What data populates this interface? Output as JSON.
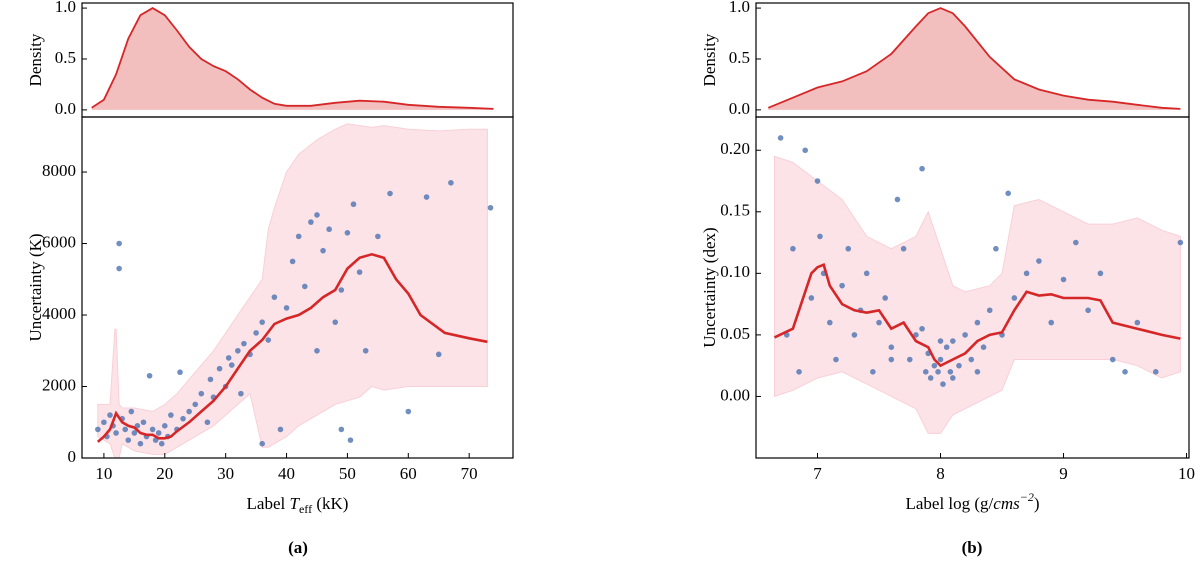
{
  "chart_data": [
    {
      "type": "area",
      "ylabel": "Density",
      "color": "#d62728",
      "x": [
        8,
        10,
        12,
        14,
        16,
        18,
        20,
        22,
        24,
        26,
        28,
        30,
        32,
        34,
        36,
        38,
        40,
        44,
        48,
        52,
        56,
        60,
        65,
        70,
        74
      ],
      "values": [
        0.02,
        0.1,
        0.35,
        0.7,
        0.93,
        1.0,
        0.93,
        0.78,
        0.62,
        0.5,
        0.43,
        0.38,
        0.3,
        0.2,
        0.12,
        0.06,
        0.04,
        0.04,
        0.07,
        0.09,
        0.08,
        0.05,
        0.03,
        0.02,
        0.01
      ],
      "xlim": [
        6.4,
        77.2
      ],
      "ylim": [
        -0.07,
        1.05
      ],
      "yticks": [
        {
          "value": 0.0,
          "label": "0.0"
        },
        {
          "value": 0.5,
          "label": "0.5"
        },
        {
          "value": 1.0,
          "label": "1.0"
        }
      ]
    },
    {
      "type": "scatter",
      "ylabel": "Uncertainty (K)",
      "xlabel": [
        "Label ",
        "T",
        "eff",
        " (kK)"
      ],
      "xlim": [
        6.4,
        77.2
      ],
      "ylim": [
        0,
        9540
      ],
      "xticks": [
        10,
        20,
        30,
        40,
        50,
        60,
        70
      ],
      "yticks": [
        0,
        2000,
        4000,
        6000,
        8000
      ],
      "band": {
        "color": "#f9d0d8",
        "x": [
          9,
          11,
          11.8,
          12,
          12.5,
          13,
          15,
          18,
          20,
          22,
          25,
          28,
          30,
          32,
          34,
          36,
          37,
          38,
          40,
          42,
          45,
          48,
          50,
          52,
          54,
          56,
          60,
          65,
          70,
          73
        ],
        "lower": [
          600,
          400,
          0,
          0,
          0,
          400,
          200,
          100,
          100,
          300,
          600,
          900,
          1200,
          1500,
          1800,
          300,
          300,
          400,
          600,
          900,
          1200,
          1500,
          1600,
          1700,
          2000,
          1900,
          2000,
          2000,
          2000,
          2000
        ],
        "upper": [
          1500,
          1500,
          3600,
          3600,
          1500,
          1400,
          1400,
          1300,
          1500,
          1800,
          2400,
          3000,
          3500,
          4000,
          4500,
          5000,
          6400,
          7000,
          8000,
          8500,
          8900,
          9200,
          9350,
          9300,
          9250,
          9300,
          9200,
          9150,
          9200,
          9200
        ]
      },
      "points": {
        "color": "#4c72b0",
        "x": [
          9,
          10,
          10.5,
          11,
          11.5,
          12,
          12.5,
          12.5,
          13,
          13.5,
          14,
          14.5,
          15,
          15.5,
          16,
          16.5,
          17,
          17.5,
          18,
          18.5,
          19,
          19.5,
          20,
          20.5,
          21,
          22,
          22.5,
          23,
          24,
          25,
          26,
          27,
          27.5,
          28,
          29,
          30,
          30.5,
          31,
          32,
          32.5,
          33,
          34,
          35,
          36,
          37,
          38,
          40,
          41,
          42,
          43,
          44,
          45,
          46,
          47,
          48,
          49,
          50,
          50.5,
          51,
          52,
          53,
          55,
          57,
          60,
          63,
          65,
          67,
          73.5,
          45,
          39,
          49,
          36
        ],
        "values": [
          800,
          1000,
          600,
          1200,
          900,
          700,
          6000,
          5300,
          1100,
          800,
          500,
          1300,
          700,
          900,
          400,
          1000,
          600,
          2300,
          800,
          500,
          700,
          400,
          900,
          600,
          1200,
          800,
          2400,
          1100,
          1300,
          1500,
          1800,
          1000,
          2200,
          1700,
          2500,
          2000,
          2800,
          2600,
          3000,
          1800,
          3200,
          2900,
          3500,
          3800,
          3300,
          4500,
          4200,
          5500,
          6200,
          4800,
          6600,
          6800,
          5800,
          6400,
          3800,
          4700,
          6300,
          500,
          7100,
          5200,
          3000,
          6200,
          7400,
          1300,
          7300,
          2900,
          7700,
          7000,
          3000,
          800,
          800,
          400
        ]
      },
      "median": {
        "color": "#d62728",
        "x": [
          9,
          10,
          11,
          12,
          13,
          14,
          15,
          16,
          17,
          18,
          19,
          20,
          21,
          22,
          24,
          26,
          28,
          30,
          32,
          34,
          36,
          38,
          40,
          42,
          44,
          46,
          48,
          50,
          52,
          54,
          56,
          58,
          60,
          62,
          66,
          70,
          73
        ],
        "values": [
          450,
          600,
          800,
          1250,
          1000,
          900,
          850,
          700,
          650,
          650,
          550,
          550,
          600,
          750,
          1000,
          1300,
          1600,
          2000,
          2500,
          3000,
          3300,
          3750,
          3900,
          4000,
          4200,
          4500,
          4700,
          5300,
          5600,
          5700,
          5600,
          5000,
          4600,
          4000,
          3500,
          3350,
          3250
        ]
      }
    },
    {
      "type": "area",
      "ylabel": "Density",
      "color": "#d62728",
      "x": [
        6.6,
        6.8,
        7.0,
        7.2,
        7.4,
        7.6,
        7.8,
        7.9,
        8.0,
        8.1,
        8.2,
        8.4,
        8.6,
        8.8,
        9.0,
        9.2,
        9.4,
        9.6,
        9.8,
        9.95
      ],
      "values": [
        0.02,
        0.12,
        0.22,
        0.28,
        0.38,
        0.55,
        0.82,
        0.95,
        1.0,
        0.95,
        0.82,
        0.52,
        0.3,
        0.2,
        0.14,
        0.1,
        0.08,
        0.05,
        0.02,
        0.01
      ],
      "xlim": [
        6.5,
        10.02
      ],
      "ylim": [
        -0.07,
        1.05
      ],
      "yticks": [
        {
          "value": 0.0,
          "label": "0.0"
        },
        {
          "value": 0.5,
          "label": "0.5"
        },
        {
          "value": 1.0,
          "label": "1.0"
        }
      ]
    },
    {
      "type": "scatter",
      "ylabel": "Uncertainty (dex)",
      "xlabel": [
        "Label log (g/",
        "cms",
        "−2",
        ")"
      ],
      "xlim": [
        6.5,
        10.02
      ],
      "ylim": [
        -0.05,
        0.227
      ],
      "xticks": [
        7,
        8,
        9,
        10
      ],
      "yticks": [
        {
          "value": 0.0,
          "label": "0.00"
        },
        {
          "value": 0.05,
          "label": "0.05"
        },
        {
          "value": 0.1,
          "label": "0.10"
        },
        {
          "value": 0.15,
          "label": "0.15"
        },
        {
          "value": 0.2,
          "label": "0.20"
        }
      ],
      "band": {
        "color": "#f9d0d8",
        "x": [
          6.65,
          6.8,
          7.0,
          7.2,
          7.4,
          7.6,
          7.8,
          7.9,
          8.0,
          8.1,
          8.2,
          8.4,
          8.5,
          8.6,
          8.8,
          9.0,
          9.2,
          9.4,
          9.6,
          9.8,
          9.95
        ],
        "lower": [
          0.0,
          0.005,
          0.015,
          0.02,
          0.01,
          0.0,
          -0.01,
          -0.03,
          -0.03,
          -0.015,
          -0.01,
          0.0,
          0.005,
          0.03,
          0.03,
          0.03,
          0.03,
          0.03,
          0.025,
          0.015,
          0.02
        ],
        "upper": [
          0.195,
          0.19,
          0.175,
          0.16,
          0.13,
          0.12,
          0.13,
          0.15,
          0.12,
          0.09,
          0.085,
          0.09,
          0.1,
          0.155,
          0.16,
          0.15,
          0.14,
          0.14,
          0.145,
          0.135,
          0.13
        ]
      },
      "points": {
        "color": "#4c72b0",
        "x": [
          6.7,
          6.75,
          6.8,
          6.85,
          6.9,
          6.95,
          7.0,
          7.02,
          7.05,
          7.1,
          7.15,
          7.2,
          7.25,
          7.3,
          7.35,
          7.4,
          7.45,
          7.5,
          7.55,
          7.6,
          7.65,
          7.7,
          7.75,
          7.8,
          7.85,
          7.88,
          7.9,
          7.92,
          7.95,
          7.98,
          8.0,
          8.02,
          8.05,
          8.08,
          8.1,
          8.15,
          8.2,
          8.25,
          8.3,
          8.35,
          8.4,
          8.45,
          8.5,
          8.55,
          8.6,
          8.7,
          8.8,
          8.9,
          9.0,
          9.1,
          9.2,
          9.3,
          9.4,
          9.5,
          9.6,
          9.75,
          9.95,
          7.6,
          8.0,
          8.1,
          7.85,
          8.3
        ],
        "values": [
          0.21,
          0.05,
          0.12,
          0.02,
          0.2,
          0.08,
          0.175,
          0.13,
          0.1,
          0.06,
          0.03,
          0.09,
          0.12,
          0.05,
          0.07,
          0.1,
          0.02,
          0.06,
          0.08,
          0.04,
          0.16,
          0.12,
          0.03,
          0.05,
          0.185,
          0.02,
          0.035,
          0.015,
          0.025,
          0.02,
          0.03,
          0.01,
          0.04,
          0.02,
          0.045,
          0.025,
          0.05,
          0.03,
          0.06,
          0.04,
          0.07,
          0.12,
          0.05,
          0.165,
          0.08,
          0.1,
          0.11,
          0.06,
          0.095,
          0.125,
          0.07,
          0.1,
          0.03,
          0.02,
          0.06,
          0.02,
          0.125,
          0.03,
          0.045,
          0.015,
          0.055,
          0.02
        ]
      },
      "median": {
        "color": "#d62728",
        "x": [
          6.65,
          6.8,
          6.9,
          6.95,
          7.0,
          7.05,
          7.1,
          7.2,
          7.3,
          7.4,
          7.5,
          7.6,
          7.7,
          7.8,
          7.9,
          7.95,
          8.0,
          8.1,
          8.2,
          8.3,
          8.4,
          8.5,
          8.6,
          8.7,
          8.8,
          8.9,
          9.0,
          9.1,
          9.2,
          9.3,
          9.4,
          9.6,
          9.8,
          9.95
        ],
        "values": [
          0.048,
          0.055,
          0.085,
          0.1,
          0.105,
          0.107,
          0.09,
          0.075,
          0.07,
          0.068,
          0.07,
          0.055,
          0.06,
          0.045,
          0.04,
          0.03,
          0.025,
          0.03,
          0.035,
          0.045,
          0.05,
          0.052,
          0.07,
          0.085,
          0.082,
          0.083,
          0.08,
          0.08,
          0.08,
          0.078,
          0.06,
          0.055,
          0.05,
          0.047
        ]
      }
    }
  ],
  "captions": [
    "(a)",
    "(b)"
  ]
}
